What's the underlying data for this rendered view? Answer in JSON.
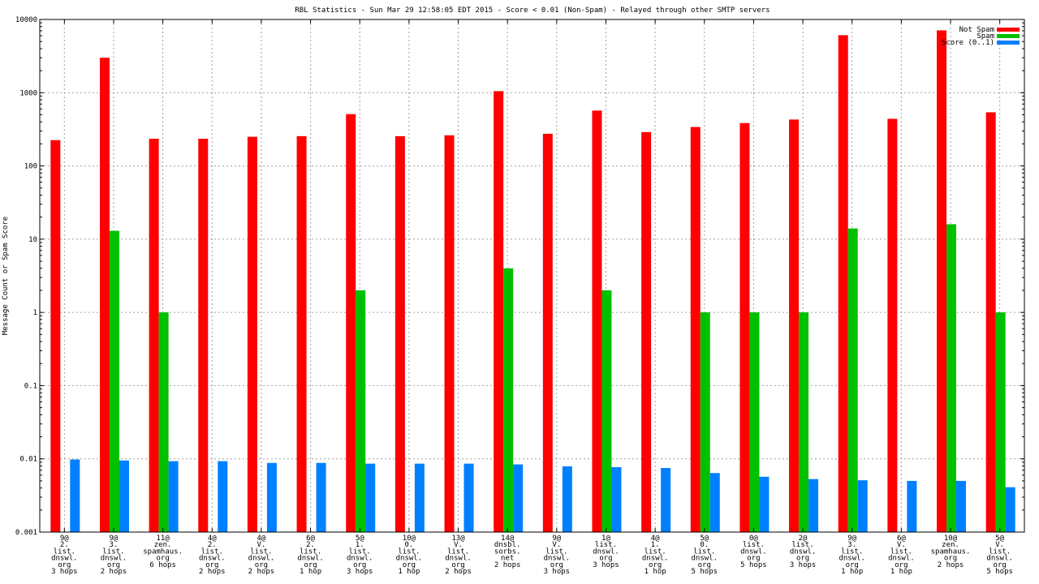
{
  "chart_data": {
    "type": "bar",
    "title": "RBL Statistics - Sun Mar 29 12:58:05 EDT 2015 - Score < 0.01 (Non-Spam) - Relayed through other SMTP servers",
    "xlabel": "",
    "ylabel": "Message Count or Spam Score",
    "yscale": "log",
    "ylim": [
      0.001,
      10000
    ],
    "yticks": [
      "0.001",
      "0.01",
      "0.1",
      "1",
      "10",
      "100",
      "1000",
      "10000"
    ],
    "grid": true,
    "legend_position": "top-right",
    "categories": [
      [
        "9@",
        "2.",
        "list.",
        "dnswl.",
        "org",
        "3 hops"
      ],
      [
        "9@",
        "3.",
        "list.",
        "dnswl.",
        "org",
        "2 hops"
      ],
      [
        "11@",
        "zen.",
        "spamhaus.",
        "org",
        "6 hops"
      ],
      [
        "4@",
        "2.",
        "list.",
        "dnswl.",
        "org",
        "2 hops"
      ],
      [
        "4@",
        "V.",
        "list.",
        "dnswl.",
        "org",
        "2 hops"
      ],
      [
        "6@",
        "2.",
        "list.",
        "dnswl.",
        "org",
        "1 hop"
      ],
      [
        "5@",
        "1.",
        "list.",
        "dnswl.",
        "org",
        "3 hops"
      ],
      [
        "10@",
        "0.",
        "list.",
        "dnswl.",
        "org",
        "1 hop"
      ],
      [
        "13@",
        "V.",
        "list.",
        "dnswl.",
        "org",
        "2 hops"
      ],
      [
        "14@",
        "dnsbl.",
        "sorbs.",
        "net",
        "2 hops"
      ],
      [
        "9@",
        "V.",
        "list.",
        "dnswl.",
        "org",
        "3 hops"
      ],
      [
        "1@",
        "list.",
        "dnswl.",
        "org",
        "3 hops"
      ],
      [
        "4@",
        "1.",
        "list.",
        "dnswl.",
        "org",
        "1 hop"
      ],
      [
        "5@",
        "0.",
        "list.",
        "dnswl.",
        "org",
        "5 hops"
      ],
      [
        "0@",
        "list.",
        "dnswl.",
        "org",
        "5 hops"
      ],
      [
        "2@",
        "list.",
        "dnswl.",
        "org",
        "3 hops"
      ],
      [
        "9@",
        "3.",
        "list.",
        "dnswl.",
        "org",
        "1 hop"
      ],
      [
        "6@",
        "V.",
        "list.",
        "dnswl.",
        "org",
        "1 hop"
      ],
      [
        "10@",
        "zen.",
        "spamhaus.",
        "org",
        "2 hops"
      ],
      [
        "5@",
        "V.",
        "list.",
        "dnswl.",
        "org",
        "5 hops"
      ]
    ],
    "series": [
      {
        "name": "Not Spam",
        "color": "#ff0000",
        "values": [
          225,
          3000,
          235,
          235,
          250,
          255,
          510,
          255,
          262,
          1050,
          275,
          570,
          290,
          340,
          385,
          430,
          6100,
          440,
          7100,
          540
        ]
      },
      {
        "name": "Spam",
        "color": "#00c000",
        "values": [
          null,
          13,
          1,
          null,
          null,
          null,
          2,
          null,
          null,
          4,
          null,
          2,
          null,
          1,
          1,
          1,
          14,
          null,
          16,
          1
        ]
      },
      {
        "name": "Score (0..1)",
        "color": "#0080ff",
        "values": [
          0.0098,
          0.0095,
          0.0093,
          0.0093,
          0.0088,
          0.0088,
          0.0086,
          0.0086,
          0.0086,
          0.0084,
          0.0079,
          0.0077,
          0.0075,
          0.0064,
          0.0057,
          0.0053,
          0.0051,
          0.005,
          0.005,
          0.0041
        ]
      }
    ]
  }
}
